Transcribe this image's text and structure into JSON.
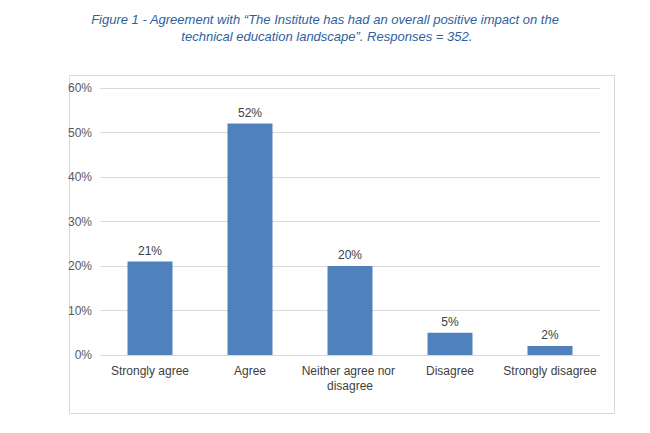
{
  "chart_data": {
    "type": "bar",
    "title": "Figure 1 - Agreement with “The Institute has had an overall positive impact on the technical education landscape”. Responses = 352.",
    "categories": [
      "Strongly agree",
      "Agree",
      "Neither agree nor disagree",
      "Disagree",
      "Strongly disagree"
    ],
    "values": [
      21,
      52,
      20,
      5,
      2
    ],
    "value_labels": [
      "21%",
      "52%",
      "20%",
      "5%",
      "2%"
    ],
    "color": "#4f81bd",
    "ylim": [
      0,
      60
    ],
    "yticks": [
      {
        "value": 0,
        "label": "0%"
      },
      {
        "value": 10,
        "label": "10%"
      },
      {
        "value": 20,
        "label": "20%"
      },
      {
        "value": 30,
        "label": "30%"
      },
      {
        "value": 40,
        "label": "40%"
      },
      {
        "value": 50,
        "label": "50%"
      },
      {
        "value": 60,
        "label": "60%"
      }
    ],
    "grid": true,
    "data_labels": true
  }
}
